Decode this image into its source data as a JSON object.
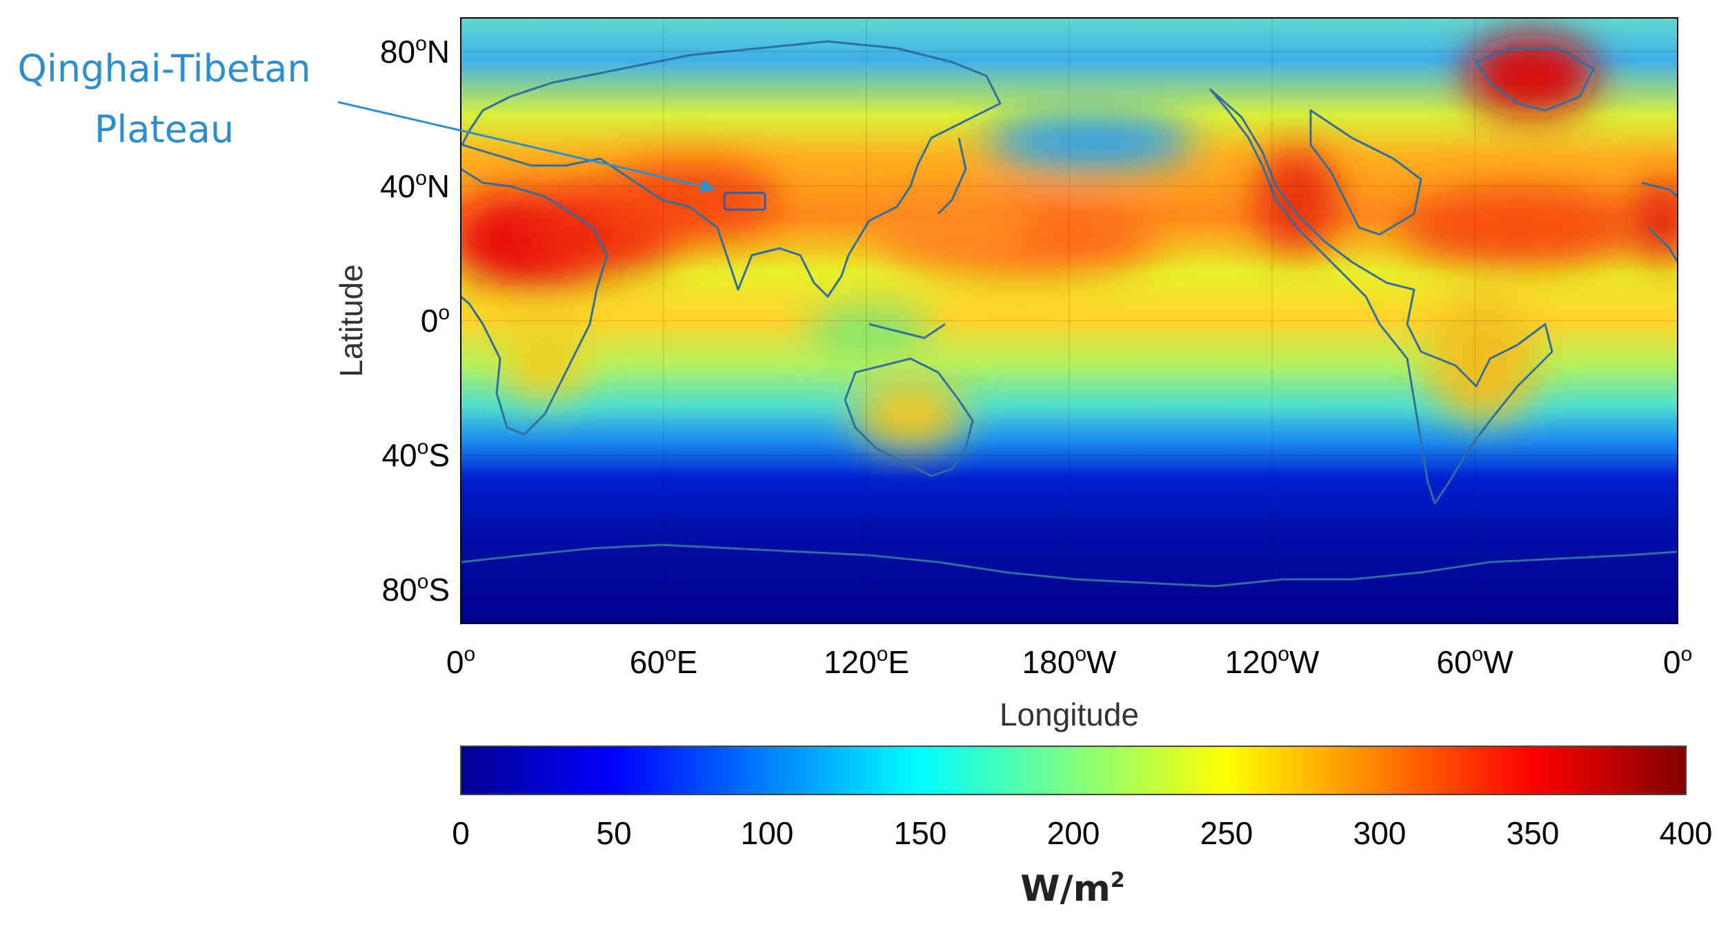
{
  "figure": {
    "annotation": {
      "line1": "Qinghai-Tibetan",
      "line2": "Plateau"
    },
    "axes": {
      "ylabel": "Latitude",
      "xlabel": "Longitude",
      "lat_ticks": [
        {
          "value": 80,
          "main": "80",
          "sup": "o",
          "suffix": "N"
        },
        {
          "value": 40,
          "main": "40",
          "sup": "o",
          "suffix": "N"
        },
        {
          "value": 0,
          "main": "0",
          "sup": "o",
          "suffix": ""
        },
        {
          "value": -40,
          "main": "40",
          "sup": "o",
          "suffix": "S"
        },
        {
          "value": -80,
          "main": "80",
          "sup": "o",
          "suffix": "S"
        }
      ],
      "lon_ticks": [
        {
          "value": 0,
          "main": "0",
          "sup": "o",
          "suffix": ""
        },
        {
          "value": 60,
          "main": "60",
          "sup": "o",
          "suffix": "E"
        },
        {
          "value": 120,
          "main": "120",
          "sup": "o",
          "suffix": "E"
        },
        {
          "value": 180,
          "main": "180",
          "sup": "o",
          "suffix": "W"
        },
        {
          "value": 240,
          "main": "120",
          "sup": "o",
          "suffix": "W"
        },
        {
          "value": 300,
          "main": "60",
          "sup": "o",
          "suffix": "W"
        },
        {
          "value": 360,
          "main": "0",
          "sup": "o",
          "suffix": ""
        }
      ]
    },
    "colorbar": {
      "ticks": [
        "0",
        "50",
        "100",
        "150",
        "200",
        "250",
        "300",
        "350",
        "400"
      ],
      "unit_main": "W/m",
      "unit_sup": "2",
      "range": [
        0,
        400
      ],
      "colormap": "jet"
    },
    "colors": {
      "annotation": "#2a8fd0",
      "coastline": "#2f6fa0",
      "cold": "#00008f",
      "hot": "#800000"
    }
  },
  "chart_data": {
    "type": "heatmap",
    "title": "",
    "xlabel": "Longitude",
    "ylabel": "Latitude",
    "xlim": [
      0,
      360
    ],
    "ylim": [
      -90,
      90
    ],
    "colorbar_range": [
      0,
      400
    ],
    "colorbar_unit": "W/m2",
    "highlight_region": {
      "name": "Qinghai-Tibetan Plateau",
      "lon": [
        78,
        90
      ],
      "lat": [
        33,
        38
      ]
    },
    "grid": true
  }
}
